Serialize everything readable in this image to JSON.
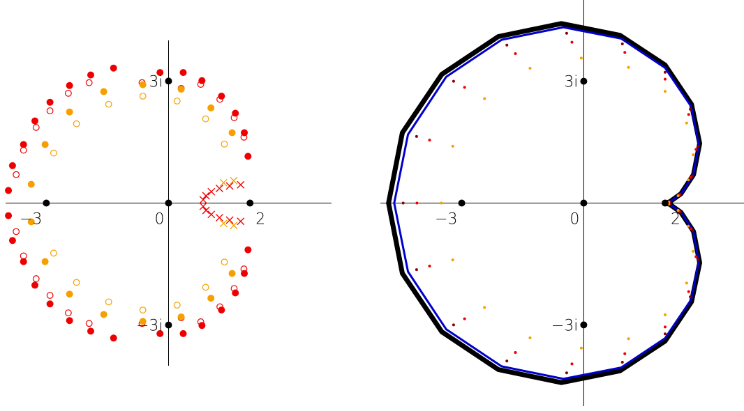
{
  "chart_data": [
    {
      "type": "scatter",
      "xlim": [
        -4,
        4
      ],
      "ylim": [
        -4,
        4
      ],
      "xticks": [
        {
          "value": -3,
          "label": "−3"
        },
        0,
        2
      ],
      "yticks": [
        {
          "value": 3,
          "label": "3i"
        },
        {
          "value": -3,
          "label": "−3i"
        }
      ],
      "series": [
        {
          "color": "#ee0000",
          "marker": "filled",
          "x": [
            -3.93,
            -3.83,
            -3.56,
            -3.28,
            -2.91,
            -2.43,
            -1.91,
            -1.35,
            -0.21,
            0.36,
            0.82,
            1.3,
            1.64,
            1.86,
            1.95,
            -3.93,
            -3.83,
            -3.56,
            -3.28,
            -2.91,
            -2.43,
            -1.91,
            -1.35,
            -0.21,
            0.36,
            0.82,
            1.3,
            1.64,
            1.86,
            1.95
          ],
          "y": [
            0.31,
            0.92,
            1.44,
            2.02,
            2.48,
            2.89,
            3.15,
            3.32,
            3.21,
            3.21,
            3.01,
            2.63,
            2.21,
            1.73,
            1.15,
            -0.31,
            -0.92,
            -1.44,
            -2.02,
            -2.48,
            -2.89,
            -3.15,
            -3.32,
            -3.21,
            -3.21,
            -3.01,
            -2.63,
            -2.21,
            -1.73,
            -1.15
          ]
        },
        {
          "color": "#ee0000",
          "marker": "open",
          "x": [
            -3.74,
            -3.56,
            -3.25,
            -2.91,
            -2.46,
            -1.95,
            -0.65,
            0.31,
            0.79,
            1.26,
            1.61,
            1.85,
            -3.74,
            -3.56,
            -3.25,
            -2.91,
            -2.46,
            -1.95,
            -0.65,
            0.31,
            0.79,
            1.26,
            1.61,
            1.85
          ],
          "y": [
            0.7,
            1.3,
            1.86,
            2.27,
            2.7,
            2.96,
            2.96,
            2.82,
            2.92,
            2.55,
            2.1,
            1.62,
            -0.7,
            -1.3,
            -1.86,
            -2.27,
            -2.7,
            -2.96,
            -2.96,
            -2.82,
            -2.92,
            -2.55,
            -2.1,
            -1.62
          ]
        },
        {
          "color": "#f5a000",
          "marker": "filled",
          "x": [
            -3.37,
            -3.03,
            -2.43,
            -1.59,
            -0.63,
            0.31,
            1.04,
            1.56,
            -3.37,
            -3.03,
            -2.43,
            -1.59,
            -0.63,
            0.31,
            1.04,
            1.56
          ],
          "y": [
            0.46,
            1.44,
            2.24,
            2.74,
            2.91,
            2.8,
            2.34,
            1.73,
            -0.46,
            -1.44,
            -2.24,
            -2.74,
            -2.91,
            -2.8,
            -2.34,
            -1.73
          ]
        },
        {
          "color": "#f5a000",
          "marker": "open",
          "x": [
            -2.82,
            -2.26,
            -1.47,
            -0.63,
            0.21,
            0.91,
            1.37,
            -2.82,
            -2.26,
            -1.47,
            -0.63,
            0.21,
            0.91,
            1.37
          ],
          "y": [
            1.23,
            1.95,
            2.43,
            2.63,
            2.51,
            2.07,
            1.45,
            -1.23,
            -1.95,
            -2.43,
            -2.63,
            -2.51,
            -2.07,
            -1.45
          ]
        },
        {
          "color": "#f5a000",
          "marker": "cross",
          "x": [
            1.6,
            1.35,
            1.6,
            1.35
          ],
          "y": [
            0.55,
            0.5,
            -0.55,
            -0.5
          ]
        },
        {
          "color": "#ee0000",
          "marker": "cross",
          "x": [
            1.77,
            1.5,
            1.25,
            1.05,
            0.92,
            0.85,
            0.85,
            0.92,
            1.05,
            1.25,
            1.5,
            1.77
          ],
          "y": [
            0.45,
            0.42,
            0.36,
            0.28,
            0.18,
            0.08,
            -0.08,
            -0.18,
            -0.28,
            -0.36,
            -0.42,
            -0.45
          ]
        }
      ]
    },
    {
      "type": "scatter",
      "xlim": [
        -5,
        3.94
      ],
      "ylim": [
        -5,
        5
      ],
      "xticks": [
        {
          "value": -3,
          "label": "−3"
        },
        0,
        2
      ],
      "yticks": [
        {
          "value": 3,
          "label": "3i"
        },
        {
          "value": -3,
          "label": "−3i"
        }
      ],
      "series": [
        {
          "color": "#000000",
          "marker": "line",
          "x": [
            2,
            2.11,
            2.39,
            2.7,
            2.85,
            2.65,
            2,
            0.89,
            -0.55,
            -2.1,
            -3.49,
            -4.46,
            -4.8,
            -4.46,
            -3.49,
            -2.1,
            -0.55,
            0.89,
            2,
            2.65,
            2.85,
            2.7,
            2.39,
            2.11,
            2
          ],
          "y": [
            0,
            0.03,
            0.23,
            0.7,
            1.47,
            2.43,
            3.4,
            4.13,
            4.42,
            4.1,
            3.17,
            1.73,
            0,
            -1.73,
            -3.17,
            -4.1,
            -4.42,
            -4.13,
            -3.4,
            -2.43,
            -1.47,
            -0.7,
            -0.23,
            -0.03,
            0
          ]
        },
        {
          "color": "#0000cc",
          "marker": "line",
          "x": [
            2,
            2.11,
            2.39,
            2.69,
            2.83,
            2.64,
            2,
            0.92,
            -0.5,
            -2.02,
            -3.38,
            -4.32,
            -4.66,
            -4.32,
            -3.38,
            -2.02,
            -0.5,
            0.92,
            2,
            2.64,
            2.83,
            2.69,
            2.39,
            2.11,
            2
          ],
          "y": [
            0,
            0.03,
            0.22,
            0.69,
            1.44,
            2.38,
            3.33,
            4.05,
            4.33,
            4.02,
            3.11,
            1.69,
            0,
            -1.69,
            -3.11,
            -4.02,
            -4.33,
            -4.05,
            -3.33,
            -2.38,
            -1.44,
            -0.69,
            -0.22,
            -0.03,
            0
          ]
        },
        {
          "color": "#8b0000",
          "marker": "dot",
          "x": [
            2.11,
            2.37,
            2.67,
            2.81,
            2.62,
            2,
            0.95,
            -0.42,
            -1.89,
            -3.2,
            -4.11,
            -4.44,
            -4.11,
            -3.2,
            -1.89,
            -0.42,
            0.95,
            2,
            2.62,
            2.81,
            2.67,
            2.37,
            2.11
          ],
          "y": [
            0.03,
            0.22,
            0.67,
            1.39,
            2.31,
            3.22,
            3.92,
            4.18,
            3.89,
            3.0,
            1.64,
            0,
            -1.64,
            -3.0,
            -3.89,
            -4.18,
            -3.92,
            -3.22,
            -2.31,
            -1.39,
            -0.67,
            -0.22,
            -0.03
          ]
        },
        {
          "color": "#ee0000",
          "marker": "dot",
          "x": [
            2.1,
            2.35,
            2.63,
            2.76,
            2.58,
            2,
            1.01,
            -0.29,
            -1.68,
            -2.93,
            -3.79,
            -4.1,
            -3.79,
            -2.93,
            -1.68,
            -0.29,
            1.01,
            2,
            2.58,
            2.76,
            2.63,
            2.35,
            2.1
          ],
          "y": [
            0.03,
            0.2,
            0.63,
            1.32,
            2.18,
            3.05,
            3.71,
            3.96,
            3.68,
            2.85,
            1.55,
            0,
            -1.55,
            -2.85,
            -3.68,
            -3.96,
            -3.71,
            -3.05,
            -2.18,
            -1.32,
            -0.63,
            -0.2,
            -0.03
          ]
        },
        {
          "color": "#f5a000",
          "marker": "dot",
          "x": [
            2.09,
            2.32,
            2.57,
            2.69,
            2.53,
            2,
            1.1,
            -0.06,
            -1.32,
            -2.44,
            -3.22,
            -3.5,
            -3.22,
            -2.44,
            -1.32,
            -0.06,
            1.1,
            2,
            2.53,
            2.69,
            2.57,
            2.32,
            2.09
          ],
          "y": [
            0.02,
            0.18,
            0.57,
            1.19,
            1.97,
            2.75,
            3.34,
            3.57,
            3.32,
            2.57,
            1.4,
            0,
            -1.4,
            -2.57,
            -3.32,
            -3.57,
            -3.34,
            -2.75,
            -1.97,
            -1.19,
            -0.57,
            -0.18,
            -0.02
          ]
        }
      ]
    }
  ]
}
